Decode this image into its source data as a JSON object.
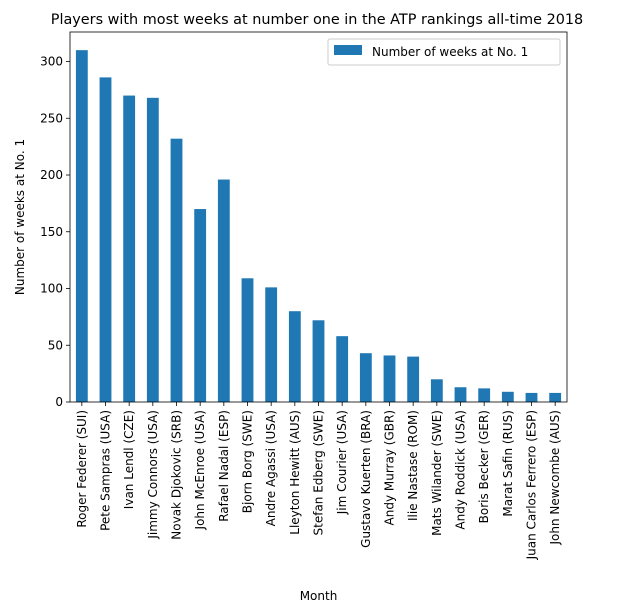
{
  "chart_data": {
    "type": "bar",
    "title": "Players with most weeks at number one in the ATP rankings all-time 2018",
    "xlabel": "Month",
    "ylabel": "Number of weeks at No. 1",
    "ylim": [
      0,
      326
    ],
    "yticks": [
      0,
      50,
      100,
      150,
      200,
      250,
      300
    ],
    "grid": false,
    "legend_position": "upper-right",
    "bar_color": "#1f77b4",
    "categories": [
      "Roger Federer (SUI)",
      "Pete Sampras (USA)",
      "Ivan Lendl (CZE)",
      "Jimmy Connors (USA)",
      "Novak Djokovic (SRB)",
      "John McEnroe (USA)",
      "Rafael Nadal (ESP)",
      "Bjorn Borg (SWE)",
      "Andre Agassi (USA)",
      "Lleyton Hewitt (AUS)",
      "Stefan Edberg (SWE)",
      "Jim Courier (USA)",
      "Gustavo Kuerten (BRA)",
      "Andy Murray (GBR)",
      "Ilie Nastase (ROM)",
      "Mats Wilander (SWE)",
      "Andy Roddick (USA)",
      "Boris Becker (GER)",
      "Marat Safin (RUS)",
      "Juan Carlos Ferrero (ESP)",
      "John Newcombe (AUS)"
    ],
    "series": [
      {
        "name": "Number of weeks at No. 1",
        "values": [
          310,
          286,
          270,
          268,
          232,
          170,
          196,
          109,
          101,
          80,
          72,
          58,
          43,
          41,
          40,
          20,
          13,
          12,
          9,
          8,
          8
        ]
      }
    ]
  }
}
